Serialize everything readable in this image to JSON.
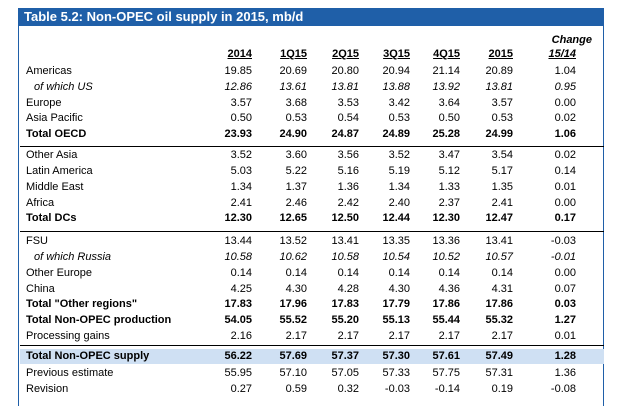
{
  "title": "Table 5.2: Non-OPEC oil supply in 2015, mb/d",
  "header": {
    "change_top": "Change",
    "columns": [
      "2014",
      "1Q15",
      "2Q15",
      "3Q15",
      "4Q15",
      "2015",
      "15/14"
    ]
  },
  "rows": [
    {
      "label": "Americas",
      "values": [
        "19.85",
        "20.69",
        "20.80",
        "20.94",
        "21.14",
        "20.89",
        "1.04"
      ]
    },
    {
      "label": "of which US",
      "values": [
        "12.86",
        "13.61",
        "13.81",
        "13.88",
        "13.92",
        "13.81",
        "0.95"
      ]
    },
    {
      "label": "Europe",
      "values": [
        "3.57",
        "3.68",
        "3.53",
        "3.42",
        "3.64",
        "3.57",
        "0.00"
      ]
    },
    {
      "label": "Asia Pacific",
      "values": [
        "0.50",
        "0.53",
        "0.54",
        "0.53",
        "0.50",
        "0.53",
        "0.02"
      ]
    },
    {
      "label": "Total OECD",
      "values": [
        "23.93",
        "24.90",
        "24.87",
        "24.89",
        "25.28",
        "24.99",
        "1.06"
      ]
    },
    {
      "label": "Other Asia",
      "values": [
        "3.52",
        "3.60",
        "3.56",
        "3.52",
        "3.47",
        "3.54",
        "0.02"
      ]
    },
    {
      "label": "Latin America",
      "values": [
        "5.03",
        "5.22",
        "5.16",
        "5.19",
        "5.12",
        "5.17",
        "0.14"
      ]
    },
    {
      "label": "Middle East",
      "values": [
        "1.34",
        "1.37",
        "1.36",
        "1.34",
        "1.33",
        "1.35",
        "0.01"
      ]
    },
    {
      "label": "Africa",
      "values": [
        "2.41",
        "2.46",
        "2.42",
        "2.40",
        "2.37",
        "2.41",
        "0.00"
      ]
    },
    {
      "label": "Total DCs",
      "values": [
        "12.30",
        "12.65",
        "12.50",
        "12.44",
        "12.30",
        "12.47",
        "0.17"
      ]
    },
    {
      "label": "FSU",
      "values": [
        "13.44",
        "13.52",
        "13.41",
        "13.35",
        "13.36",
        "13.41",
        "-0.03"
      ]
    },
    {
      "label": "of which Russia",
      "values": [
        "10.58",
        "10.62",
        "10.58",
        "10.54",
        "10.52",
        "10.57",
        "-0.01"
      ]
    },
    {
      "label": "Other Europe",
      "values": [
        "0.14",
        "0.14",
        "0.14",
        "0.14",
        "0.14",
        "0.14",
        "0.00"
      ]
    },
    {
      "label": "China",
      "values": [
        "4.25",
        "4.30",
        "4.28",
        "4.30",
        "4.36",
        "4.31",
        "0.07"
      ]
    },
    {
      "label": "Total \"Other regions\"",
      "values": [
        "17.83",
        "17.96",
        "17.83",
        "17.79",
        "17.86",
        "17.86",
        "0.03"
      ]
    },
    {
      "label": "Total Non-OPEC production",
      "values": [
        "54.05",
        "55.52",
        "55.20",
        "55.13",
        "55.44",
        "55.32",
        "1.27"
      ]
    },
    {
      "label": "Processing gains",
      "values": [
        "2.16",
        "2.17",
        "2.17",
        "2.17",
        "2.17",
        "2.17",
        "0.01"
      ]
    },
    {
      "label": "Total Non-OPEC supply",
      "values": [
        "56.22",
        "57.69",
        "57.37",
        "57.30",
        "57.61",
        "57.49",
        "1.28"
      ]
    },
    {
      "label": "Previous estimate",
      "values": [
        "55.95",
        "57.10",
        "57.05",
        "57.33",
        "57.75",
        "57.31",
        "1.36"
      ]
    },
    {
      "label": "Revision",
      "values": [
        "0.27",
        "0.59",
        "0.32",
        "-0.03",
        "-0.14",
        "0.19",
        "-0.08"
      ]
    }
  ]
}
